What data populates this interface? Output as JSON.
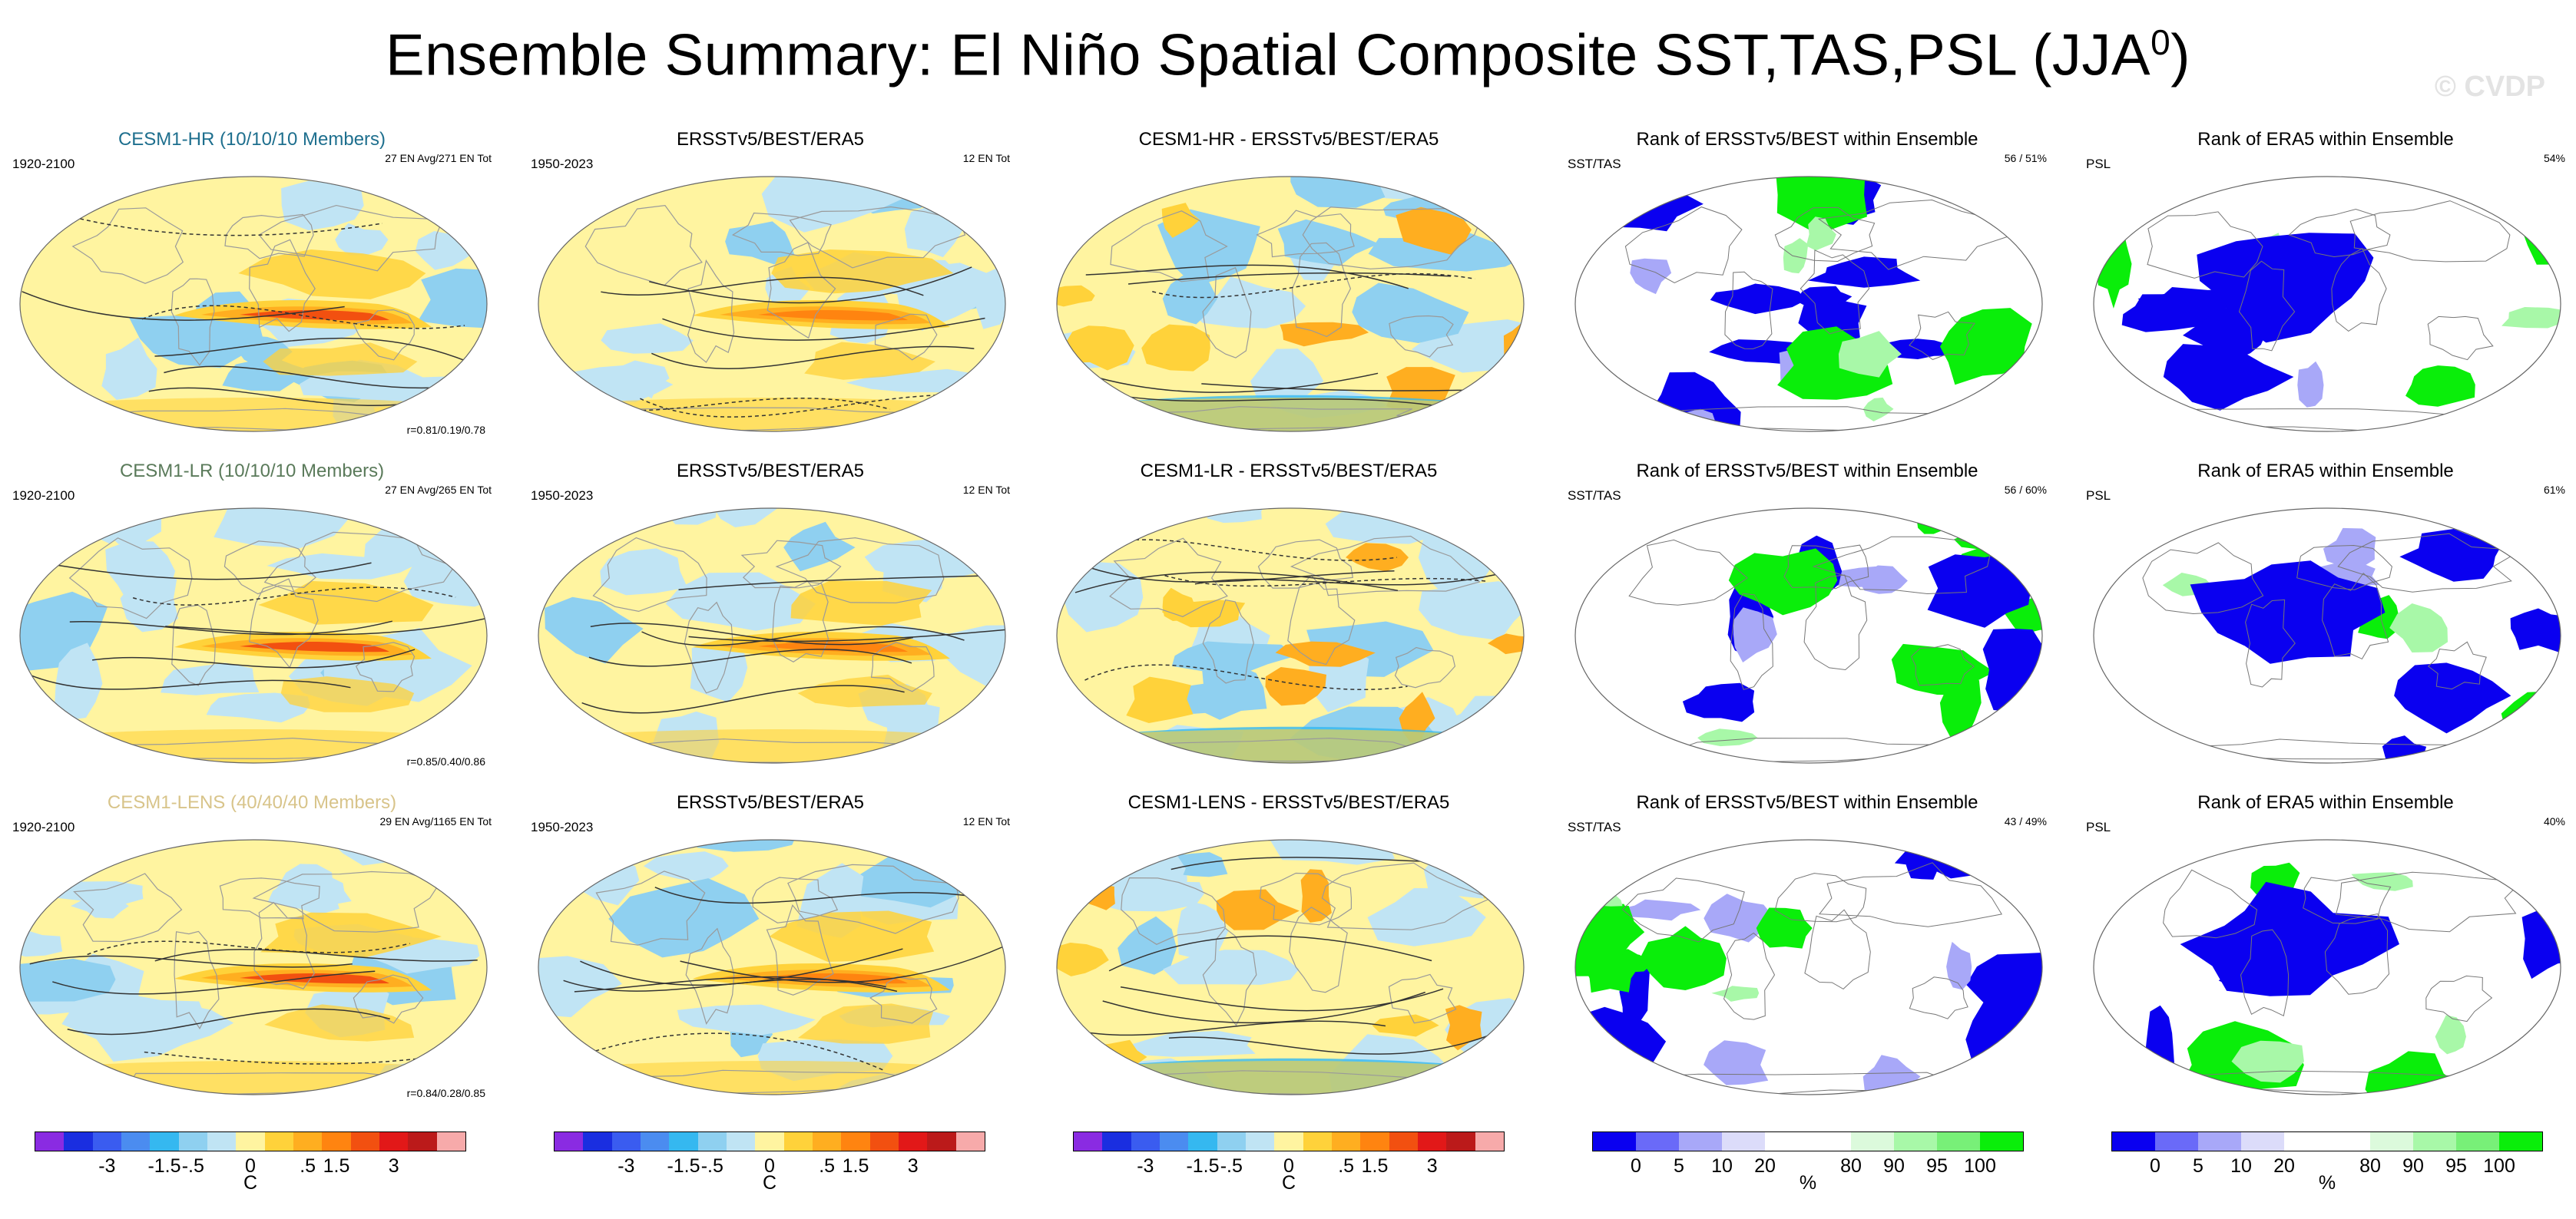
{
  "title_main": "Ensemble Summary: El Niño Spatial Composite SST,TAS,PSL (JJA",
  "title_sup": "0",
  "title_close": ")",
  "watermark": "© CVDP",
  "colors": {
    "hr": "#1e6f8e",
    "lr": "#5a7a5a",
    "lens": "#d8c48a",
    "anom_scale": [
      "#8a2be2",
      "#1a2ee0",
      "#3a5cf0",
      "#4b8cf0",
      "#35b8f0",
      "#8fd0f0",
      "#c0e4f4",
      "#fff4a0",
      "#ffd23a",
      "#ffae20",
      "#ff8410",
      "#f25010",
      "#e21818",
      "#bb1a1a",
      "#f7aaaa"
    ],
    "rank_scale": [
      "#0a00f0",
      "#6a6af8",
      "#a8a8f8",
      "#dcdcfa",
      "#ffffff",
      "#ffffff",
      "#dcfadc",
      "#a8f8a8",
      "#78f078",
      "#0aee0a"
    ]
  },
  "rows": [
    {
      "name": "hr",
      "model_title": "CESM1-HR (10/10/10 Members)",
      "model_years": "1920-2100",
      "model_stats": "27 EN Avg/271 EN Tot",
      "model_corr": "r=0.81/0.19/0.78",
      "obs_title": "ERSSTv5/BEST/ERA5",
      "obs_years": "1950-2023",
      "obs_stats": "12 EN Tot",
      "diff_title": "CESM1-HR - ERSSTv5/BEST/ERA5",
      "rank1_title": "Rank of ERSSTv5/BEST within Ensemble",
      "rank1_left": "SST/TAS",
      "rank1_right": "56 /  51%",
      "rank2_title": "Rank of ERA5 within Ensemble",
      "rank2_left": "PSL",
      "rank2_right": "54%"
    },
    {
      "name": "lr",
      "model_title": "CESM1-LR (10/10/10 Members)",
      "model_years": "1920-2100",
      "model_stats": "27 EN Avg/265 EN Tot",
      "model_corr": "r=0.85/0.40/0.86",
      "obs_title": "ERSSTv5/BEST/ERA5",
      "obs_years": "1950-2023",
      "obs_stats": "12 EN Tot",
      "diff_title": "CESM1-LR - ERSSTv5/BEST/ERA5",
      "rank1_title": "Rank of ERSSTv5/BEST within Ensemble",
      "rank1_left": "SST/TAS",
      "rank1_right": "56 /  60%",
      "rank2_title": "Rank of ERA5 within Ensemble",
      "rank2_left": "PSL",
      "rank2_right": "61%"
    },
    {
      "name": "lens",
      "model_title": "CESM1-LENS (40/40/40 Members)",
      "model_years": "1920-2100",
      "model_stats": "29 EN Avg/1165 EN Tot",
      "model_corr": "r=0.84/0.28/0.85",
      "obs_title": "ERSSTv5/BEST/ERA5",
      "obs_years": "1950-2023",
      "obs_stats": "12 EN Tot",
      "diff_title": "CESM1-LENS - ERSSTv5/BEST/ERA5",
      "rank1_title": "Rank of ERSSTv5/BEST within Ensemble",
      "rank1_left": "SST/TAS",
      "rank1_right": "43 /  49%",
      "rank2_title": "Rank of ERA5 within Ensemble",
      "rank2_left": "PSL",
      "rank2_right": "40%"
    }
  ],
  "colorbars": {
    "anom": {
      "ticks": [
        "-3",
        "-1.5",
        "-.5",
        "0",
        ".5",
        "1.5",
        "3"
      ],
      "unit": "C"
    },
    "rank": {
      "ticks": [
        "0",
        "5",
        "10",
        "20",
        "80",
        "90",
        "95",
        "100"
      ],
      "unit": "%"
    }
  },
  "chart_data": [
    {
      "type": "heatmap",
      "title": "Ensemble Summary: El Niño Spatial Composite SST,TAS,PSL (JJA0)",
      "variables": [
        "SST",
        "TAS",
        "PSL"
      ],
      "season": "JJA0",
      "panels": [
        {
          "row": "CESM1-HR",
          "column": "model composite",
          "members": "10/10/10",
          "years": "1920-2100",
          "en_avg": 27,
          "en_tot": 271,
          "pattern_corr": [
            0.81,
            0.19,
            0.78
          ]
        },
        {
          "row": "CESM1-HR",
          "column": "observations",
          "dataset": "ERSSTv5/BEST/ERA5",
          "years": "1950-2023",
          "en_tot": 12
        },
        {
          "row": "CESM1-HR",
          "column": "difference"
        },
        {
          "row": "CESM1-HR",
          "column": "rank SST/TAS",
          "values_pct": [
            56,
            51
          ]
        },
        {
          "row": "CESM1-HR",
          "column": "rank PSL",
          "value_pct": 54
        },
        {
          "row": "CESM1-LR",
          "column": "model composite",
          "members": "10/10/10",
          "years": "1920-2100",
          "en_avg": 27,
          "en_tot": 265,
          "pattern_corr": [
            0.85,
            0.4,
            0.86
          ]
        },
        {
          "row": "CESM1-LR",
          "column": "observations",
          "dataset": "ERSSTv5/BEST/ERA5",
          "years": "1950-2023",
          "en_tot": 12
        },
        {
          "row": "CESM1-LR",
          "column": "difference"
        },
        {
          "row": "CESM1-LR",
          "column": "rank SST/TAS",
          "values_pct": [
            56,
            60
          ]
        },
        {
          "row": "CESM1-LR",
          "column": "rank PSL",
          "value_pct": 61
        },
        {
          "row": "CESM1-LENS",
          "column": "model composite",
          "members": "40/40/40",
          "years": "1920-2100",
          "en_avg": 29,
          "en_tot": 1165,
          "pattern_corr": [
            0.84,
            0.28,
            0.85
          ]
        },
        {
          "row": "CESM1-LENS",
          "column": "observations",
          "dataset": "ERSSTv5/BEST/ERA5",
          "years": "1950-2023",
          "en_tot": 12
        },
        {
          "row": "CESM1-LENS",
          "column": "difference"
        },
        {
          "row": "CESM1-LENS",
          "column": "rank SST/TAS",
          "values_pct": [
            43,
            49
          ]
        },
        {
          "row": "CESM1-LENS",
          "column": "rank PSL",
          "value_pct": 40
        }
      ],
      "anomaly_colorbar": {
        "ticks": [
          -3,
          -1.5,
          -0.5,
          0,
          0.5,
          1.5,
          3
        ],
        "unit": "C"
      },
      "rank_colorbar": {
        "ticks": [
          0,
          5,
          10,
          20,
          80,
          90,
          95,
          100
        ],
        "unit": "%"
      }
    }
  ]
}
